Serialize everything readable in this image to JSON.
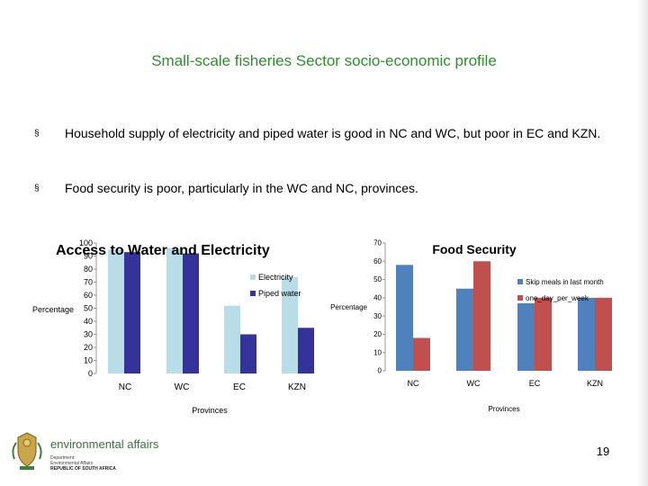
{
  "slide": {
    "title": "Small-scale fisheries Sector socio-economic profile",
    "bullets": [
      "Household supply of electricity and piped water is good in NC and WC, but poor in EC and KZN.",
      "Food security is poor, particularly in the WC and NC, provinces."
    ],
    "bullet_marker": "§",
    "page_number": "19"
  },
  "logo": {
    "name": "environmental affairs",
    "line1": "Department:",
    "line2": "Environmental Affairs",
    "line3": "REPUBLIC OF SOUTH AFRICA"
  },
  "colors": {
    "title": "#2f8f2f",
    "electricity": "#b9dde6",
    "piped_water": "#33339a",
    "skip_meals": "#4f81bd",
    "one_day_per_week": "#c0504d"
  },
  "chart_data": [
    {
      "type": "bar",
      "title": "Access to Water and Electricity",
      "xlabel": "Provinces",
      "ylabel": "Percentage",
      "categories": [
        "NC",
        "WC",
        "EC",
        "KZN"
      ],
      "ylim": [
        0,
        100
      ],
      "yticks": [
        0,
        10,
        20,
        30,
        40,
        50,
        60,
        70,
        80,
        90,
        100
      ],
      "series": [
        {
          "name": "Electricity",
          "values": [
            95,
            96,
            52,
            74
          ]
        },
        {
          "name": "Piped water",
          "values": [
            93,
            92,
            30,
            35
          ]
        }
      ],
      "legend": "right",
      "grid": false
    },
    {
      "type": "bar",
      "title": "Food Security",
      "xlabel": "Provinces",
      "ylabel": "Percentage",
      "categories": [
        "NC",
        "WC",
        "EC",
        "KZN"
      ],
      "ylim": [
        0,
        70
      ],
      "yticks": [
        0,
        10,
        20,
        30,
        40,
        50,
        60,
        70
      ],
      "series": [
        {
          "name": "Skip meals in last month",
          "values": [
            58,
            45,
            37,
            40
          ]
        },
        {
          "name": "one_day_per_week",
          "values": [
            18,
            60,
            40,
            40
          ]
        }
      ],
      "legend": "right",
      "grid": false
    }
  ]
}
